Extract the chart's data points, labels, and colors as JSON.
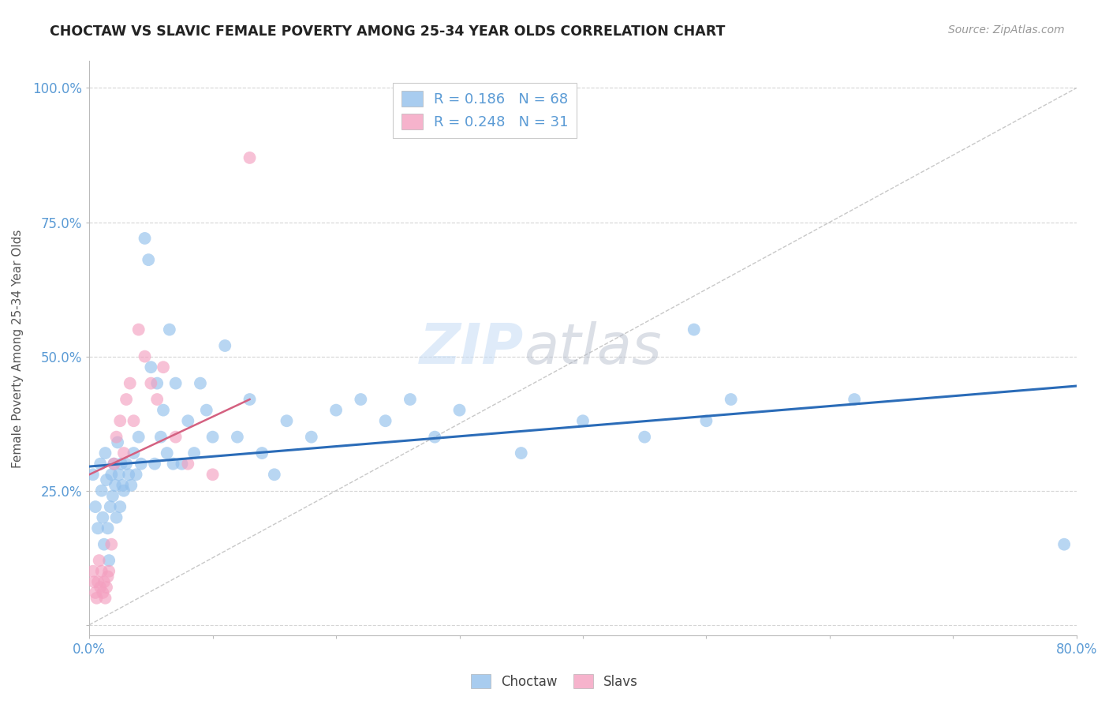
{
  "title": "CHOCTAW VS SLAVIC FEMALE POVERTY AMONG 25-34 YEAR OLDS CORRELATION CHART",
  "source": "Source: ZipAtlas.com",
  "ylabel": "Female Poverty Among 25-34 Year Olds",
  "xlim": [
    0.0,
    0.8
  ],
  "ylim": [
    -0.02,
    1.05
  ],
  "choctaw_color": "#92C0EC",
  "slavs_color": "#F4A0C0",
  "choctaw_line_color": "#2B6CB8",
  "slavs_line_color": "#D46080",
  "diagonal_color": "#C8C8C8",
  "legend_r_choctaw": "0.186",
  "legend_n_choctaw": "68",
  "legend_r_slavs": "0.248",
  "legend_n_slavs": "31",
  "choctaw_x": [
    0.003,
    0.005,
    0.007,
    0.009,
    0.01,
    0.011,
    0.012,
    0.013,
    0.014,
    0.015,
    0.016,
    0.017,
    0.018,
    0.019,
    0.02,
    0.021,
    0.022,
    0.023,
    0.024,
    0.025,
    0.026,
    0.027,
    0.028,
    0.03,
    0.032,
    0.034,
    0.036,
    0.038,
    0.04,
    0.042,
    0.045,
    0.048,
    0.05,
    0.053,
    0.055,
    0.058,
    0.06,
    0.063,
    0.065,
    0.068,
    0.07,
    0.075,
    0.08,
    0.085,
    0.09,
    0.095,
    0.1,
    0.11,
    0.12,
    0.13,
    0.14,
    0.15,
    0.16,
    0.18,
    0.2,
    0.22,
    0.24,
    0.26,
    0.28,
    0.3,
    0.35,
    0.4,
    0.45,
    0.49,
    0.5,
    0.52,
    0.62,
    0.79
  ],
  "choctaw_y": [
    0.28,
    0.22,
    0.18,
    0.3,
    0.25,
    0.2,
    0.15,
    0.32,
    0.27,
    0.18,
    0.12,
    0.22,
    0.28,
    0.24,
    0.3,
    0.26,
    0.2,
    0.34,
    0.28,
    0.22,
    0.3,
    0.26,
    0.25,
    0.3,
    0.28,
    0.26,
    0.32,
    0.28,
    0.35,
    0.3,
    0.72,
    0.68,
    0.48,
    0.3,
    0.45,
    0.35,
    0.4,
    0.32,
    0.55,
    0.3,
    0.45,
    0.3,
    0.38,
    0.32,
    0.45,
    0.4,
    0.35,
    0.52,
    0.35,
    0.42,
    0.32,
    0.28,
    0.38,
    0.35,
    0.4,
    0.42,
    0.38,
    0.42,
    0.35,
    0.4,
    0.32,
    0.38,
    0.35,
    0.55,
    0.38,
    0.42,
    0.42,
    0.15
  ],
  "slavs_x": [
    0.003,
    0.004,
    0.005,
    0.006,
    0.007,
    0.008,
    0.009,
    0.01,
    0.011,
    0.012,
    0.013,
    0.014,
    0.015,
    0.016,
    0.018,
    0.02,
    0.022,
    0.025,
    0.028,
    0.03,
    0.033,
    0.036,
    0.04,
    0.045,
    0.05,
    0.055,
    0.06,
    0.07,
    0.08,
    0.1,
    0.13
  ],
  "slavs_y": [
    0.1,
    0.08,
    0.06,
    0.05,
    0.08,
    0.12,
    0.07,
    0.1,
    0.06,
    0.08,
    0.05,
    0.07,
    0.09,
    0.1,
    0.15,
    0.3,
    0.35,
    0.38,
    0.32,
    0.42,
    0.45,
    0.38,
    0.55,
    0.5,
    0.45,
    0.42,
    0.48,
    0.35,
    0.3,
    0.28,
    0.87
  ],
  "choctaw_trend_x": [
    0.0,
    0.8
  ],
  "choctaw_trend_y": [
    0.295,
    0.445
  ],
  "slavs_trend_x": [
    0.0,
    0.13
  ],
  "slavs_trend_y": [
    0.28,
    0.42
  ]
}
